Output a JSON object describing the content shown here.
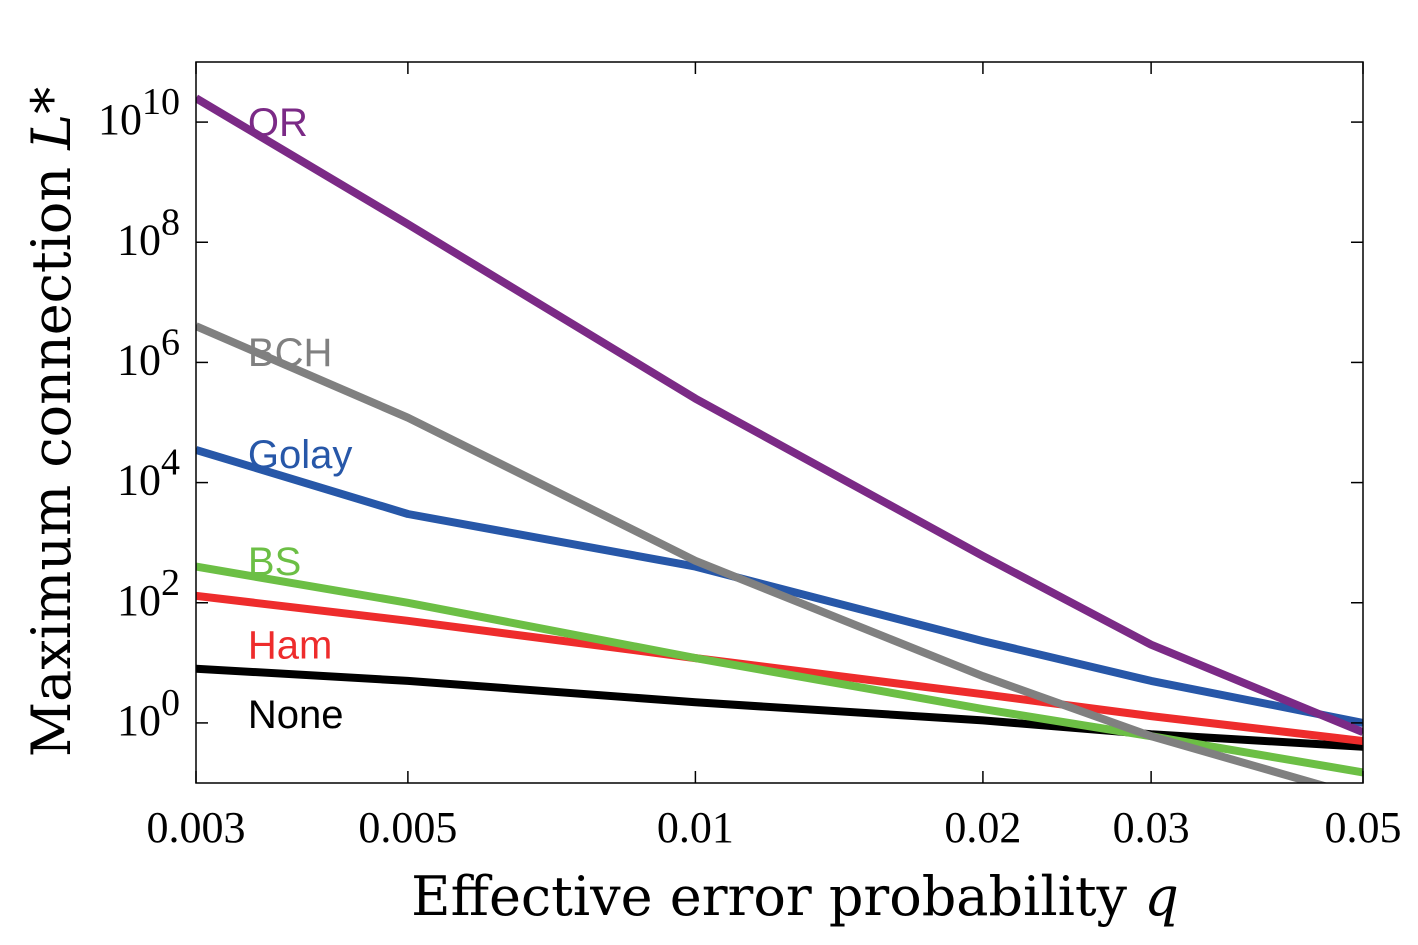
{
  "chart_data": {
    "type": "line",
    "title": "",
    "xlabel": "Effective error probability  ",
    "xlabel_var": "q",
    "ylabel": "Maximum connection  ",
    "ylabel_var": "L*",
    "x_scale": "log",
    "y_scale": "log",
    "xlim": [
      0.003,
      0.05
    ],
    "ylim": [
      0.1,
      100000000000
    ],
    "x_ticks": [
      0.003,
      0.005,
      0.01,
      0.02,
      0.03,
      0.05
    ],
    "x_tick_labels": [
      "0.003",
      "0.005",
      "0.01",
      "0.02",
      "0.03",
      "0.05"
    ],
    "y_ticks": [
      1,
      100,
      10000,
      1000000,
      100000000,
      10000000000
    ],
    "y_tick_base": "10",
    "y_tick_exponents": [
      "0",
      "2",
      "4",
      "6",
      "8",
      "10"
    ],
    "grid": false,
    "legend": "inline labels",
    "series": [
      {
        "name": "QR",
        "color": "#7B2A86",
        "label_x": 0.0034,
        "label_y": 10000000000,
        "x": [
          0.003,
          0.005,
          0.01,
          0.02,
          0.03,
          0.05
        ],
        "y": [
          25000000000,
          200000000,
          250000,
          600,
          20,
          0.7
        ]
      },
      {
        "name": "BCH",
        "color": "#808080",
        "label_x": 0.0034,
        "label_y": 1500000,
        "x": [
          0.003,
          0.005,
          0.01,
          0.02,
          0.03,
          0.048
        ],
        "y": [
          4000000,
          120000,
          500,
          6,
          0.6,
          0.07
        ]
      },
      {
        "name": "Golay",
        "color": "#2757A8",
        "label_x": 0.0034,
        "label_y": 30000,
        "x": [
          0.003,
          0.005,
          0.01,
          0.02,
          0.03,
          0.05
        ],
        "y": [
          35000,
          3000,
          400,
          23,
          5,
          1
        ]
      },
      {
        "name": "BS",
        "color": "#6CBF45",
        "label_x": 0.0034,
        "label_y": 500,
        "x": [
          0.003,
          0.005,
          0.01,
          0.02,
          0.03,
          0.05
        ],
        "y": [
          400,
          100,
          12,
          1.7,
          0.6,
          0.15
        ]
      },
      {
        "name": "Ham",
        "color": "#EE2C2C",
        "label_x": 0.0034,
        "label_y": 20,
        "x": [
          0.003,
          0.005,
          0.01,
          0.02,
          0.03,
          0.05
        ],
        "y": [
          130,
          50,
          12,
          3,
          1.3,
          0.5
        ]
      },
      {
        "name": "None",
        "color": "#000000",
        "label_x": 0.0034,
        "label_y": 1.4,
        "x": [
          0.003,
          0.005,
          0.01,
          0.02,
          0.03,
          0.05
        ],
        "y": [
          8,
          5,
          2.2,
          1.1,
          0.65,
          0.4
        ]
      }
    ]
  }
}
